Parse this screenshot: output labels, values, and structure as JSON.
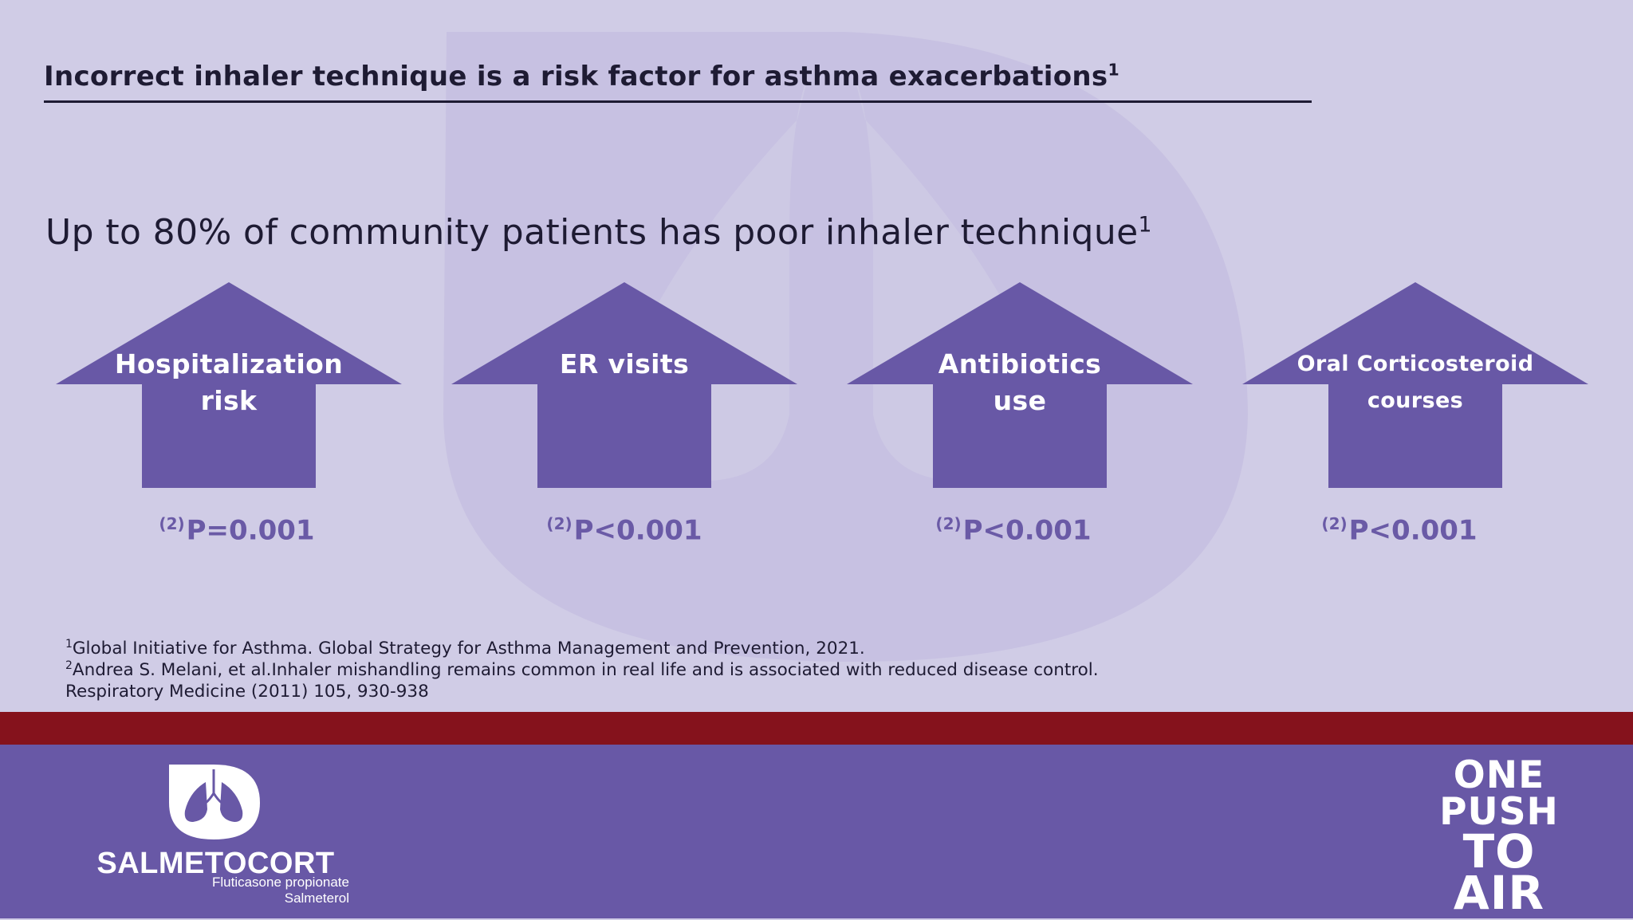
{
  "title": "Incorrect inhaler technique is a risk factor for asthma exacerbations",
  "title_sup": "1",
  "subtitle": "Up to 80% of community patients has poor inhaler technique",
  "subtitle_sup": "1",
  "arrow_color": "#6858a6",
  "arrows": [
    {
      "line1": "Hospitalization",
      "line2": "risk",
      "ref": "(2)",
      "pvalue": "P=0.001"
    },
    {
      "line1": "ER visits",
      "line2": "",
      "ref": "(2)",
      "pvalue": "P<0.001"
    },
    {
      "line1": "Antibiotics",
      "line2": "use",
      "ref": "(2)",
      "pvalue": "P<0.001"
    },
    {
      "line1": "Oral Corticosteroid",
      "line2": "courses",
      "ref": "(2)",
      "pvalue": "P<0.001"
    }
  ],
  "references": [
    {
      "sup": "1",
      "text": "Global Initiative for Asthma. Global Strategy for Asthma Management and Prevention, 2021."
    },
    {
      "sup": "2",
      "text": "Andrea S. Melani, et al.Inhaler mishandling remains common in real life and is associated with reduced disease control."
    },
    {
      "sup": "",
      "text": "Respiratory Medicine (2011) 105, 930-938"
    }
  ],
  "footer": {
    "brand": "SALMETOCORT",
    "ingredient1": "Fluticasone propionate",
    "ingredient2": "Salmeterol",
    "slogan": [
      "ONE",
      "PUSH",
      "TO",
      "AIR"
    ],
    "logo_icon": "lungs-icon",
    "red_band_color": "#85121c",
    "purple_band_color": "#6858a6"
  }
}
